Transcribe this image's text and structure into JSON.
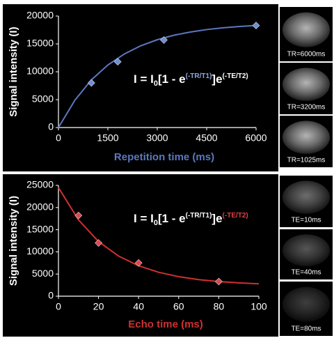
{
  "chart_data": [
    {
      "type": "line",
      "ylabel": "Signal intensity (I)",
      "xlabel": "Repetition time (ms)",
      "xlabel_color": "#5b78c0",
      "xlim": [
        0,
        6000
      ],
      "xticks": [
        0,
        1500,
        3000,
        4500,
        6000
      ],
      "ylim": [
        0,
        20000
      ],
      "yticks": [
        0,
        5000,
        10000,
        15000,
        20000
      ],
      "formula": [
        "I = I",
        "0",
        "[1 - e",
        "(-TR/T1)",
        "]e",
        "(-TE/T2)"
      ],
      "formula_colors": [
        "#ffffff",
        "#ffffff",
        "#ffffff",
        "#8fa8e0",
        "#ffffff",
        "#ffffff"
      ],
      "series": [
        {
          "color": "#5b78c0",
          "style": "curve",
          "x": [
            0,
            500,
            1000,
            1500,
            2000,
            2500,
            3000,
            3500,
            4000,
            4500,
            5000,
            5500,
            6000
          ],
          "values": [
            0,
            4910,
            8550,
            11220,
            13190,
            14670,
            15750,
            16550,
            17130,
            17570,
            17890,
            18130,
            18310
          ]
        },
        {
          "color": "#6f8fd0",
          "style": "markers",
          "x": [
            1000,
            1800,
            3200,
            6000
          ],
          "values": [
            8000,
            11800,
            15700,
            18300
          ]
        }
      ]
    },
    {
      "type": "line",
      "ylabel": "Signal intensity (I)",
      "xlabel": "Echo time (ms)",
      "xlabel_color": "#d0302f",
      "xlim": [
        0,
        100
      ],
      "xticks": [
        0,
        20,
        40,
        60,
        80,
        100
      ],
      "ylim": [
        0,
        25000
      ],
      "yticks": [
        0,
        5000,
        10000,
        15000,
        20000,
        25000
      ],
      "formula": [
        "I = I",
        "0",
        "[1 - e",
        "(-TR/T1)",
        "]e",
        "(-TE/T2)"
      ],
      "formula_colors": [
        "#ffffff",
        "#ffffff",
        "#ffffff",
        "#ffffff",
        "#ffffff",
        "#e04040"
      ],
      "series": [
        {
          "color": "#d0302f",
          "style": "curve",
          "x": [
            0,
            10,
            20,
            30,
            40,
            50,
            60,
            70,
            80,
            90,
            100
          ],
          "values": [
            24500,
            17210,
            12330,
            9060,
            6860,
            5390,
            4400,
            3740,
            3300,
            3000,
            2800
          ]
        },
        {
          "color": "#e04848",
          "style": "markers",
          "x": [
            10,
            20,
            40,
            80
          ],
          "values": [
            18200,
            12000,
            7500,
            3300
          ]
        }
      ]
    }
  ],
  "thumbnails": {
    "top": [
      "TR=6000ms",
      "TR=3200ms",
      "TR=1025ms"
    ],
    "bottom": [
      "TE=10ms",
      "TE=40ms",
      "TE=80ms"
    ]
  }
}
